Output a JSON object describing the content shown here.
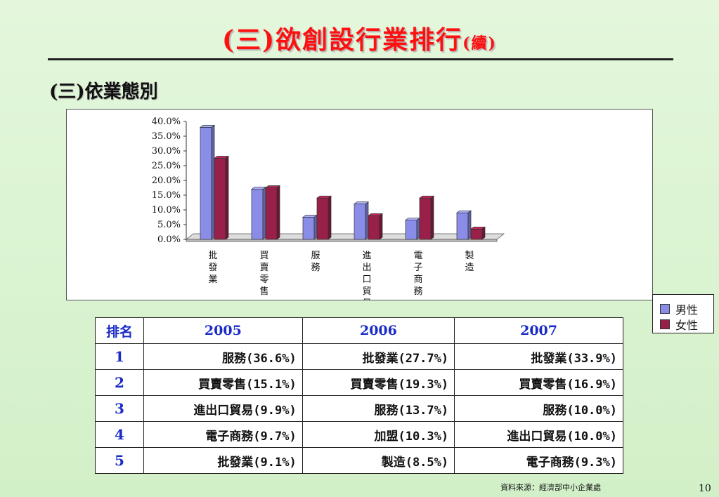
{
  "header": {
    "title_main": "(三)欲創設行業排行",
    "title_suffix": "(續)"
  },
  "section": {
    "subtitle": "(三)依業態別"
  },
  "colors": {
    "male": "#8a8de8",
    "female": "#992048",
    "title": "#ff1010",
    "header_text": "#1a2bc8"
  },
  "chart_data": {
    "type": "bar",
    "categories": [
      "批發業",
      "買賣零售",
      "服務",
      "進出口貿易",
      "電子商務",
      "製造"
    ],
    "series": [
      {
        "name": "男性",
        "values": [
          38.0,
          17.0,
          7.5,
          12.0,
          6.5,
          9.0
        ]
      },
      {
        "name": "女性",
        "values": [
          27.5,
          17.5,
          14.0,
          8.0,
          14.0,
          3.5
        ]
      }
    ],
    "ylim": [
      0,
      40
    ],
    "yticks": [
      "0.0%",
      "5.0%",
      "10.0%",
      "15.0%",
      "20.0%",
      "25.0%",
      "30.0%",
      "35.0%",
      "40.0%"
    ],
    "legend_position": "right",
    "title": "",
    "xlabel": "",
    "ylabel": ""
  },
  "table": {
    "headers": [
      "排名",
      "2005",
      "2006",
      "2007"
    ],
    "rows": [
      {
        "rank": "1",
        "c2005": "服務(36.6%)",
        "c2006": "批發業(27.7%)",
        "c2007": "批發業(33.9%)"
      },
      {
        "rank": "2",
        "c2005": "買賣零售(15.1%)",
        "c2006": "買賣零售(19.3%)",
        "c2007": "買賣零售(16.9%)"
      },
      {
        "rank": "3",
        "c2005": "進出口貿易(9.9%)",
        "c2006": "服務(13.7%)",
        "c2007": "服務(10.0%)"
      },
      {
        "rank": "4",
        "c2005": "電子商務(9.7%)",
        "c2006": "加盟(10.3%)",
        "c2007": "進出口貿易(10.0%)"
      },
      {
        "rank": "5",
        "c2005": "批發業(9.1%)",
        "c2006": "製造(8.5%)",
        "c2007": "電子商務(9.3%)"
      }
    ]
  },
  "footer": {
    "source": "資料來源：經濟部中小企業處",
    "page_number": "10"
  }
}
